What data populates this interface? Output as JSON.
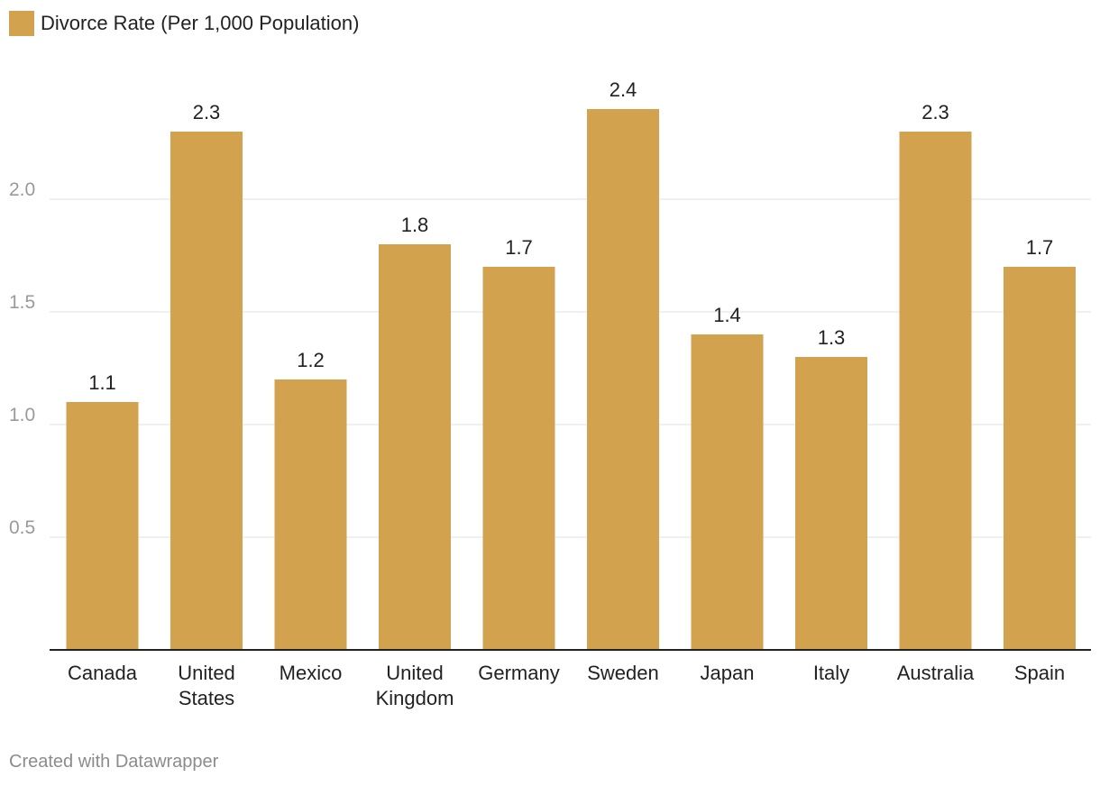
{
  "chart_data": {
    "type": "bar",
    "categories": [
      "Canada",
      "United States",
      "Mexico",
      "United Kingdom",
      "Germany",
      "Sweden",
      "Japan",
      "Italy",
      "Australia",
      "Spain"
    ],
    "category_lines": [
      [
        "Canada"
      ],
      [
        "United",
        "States"
      ],
      [
        "Mexico"
      ],
      [
        "United",
        "Kingdom"
      ],
      [
        "Germany"
      ],
      [
        "Sweden"
      ],
      [
        "Japan"
      ],
      [
        "Italy"
      ],
      [
        "Australia"
      ],
      [
        "Spain"
      ]
    ],
    "series": [
      {
        "name": "Divorce Rate (Per 1,000 Population)",
        "values": [
          1.1,
          2.3,
          1.2,
          1.8,
          1.7,
          2.4,
          1.4,
          1.3,
          2.3,
          1.7
        ],
        "color": "#d3a24f"
      }
    ],
    "value_labels": [
      "1.1",
      "2.3",
      "1.2",
      "1.8",
      "1.7",
      "2.4",
      "1.4",
      "1.3",
      "2.3",
      "1.7"
    ],
    "yticks": [
      0.5,
      1.0,
      1.5,
      2.0
    ],
    "ytick_labels": [
      "0.5",
      "1.0",
      "1.5",
      "2.0"
    ],
    "ylim": [
      0,
      2.4
    ],
    "grid": true,
    "legend": "top-left",
    "title": "",
    "xlabel": "",
    "ylabel": ""
  },
  "legend": {
    "label": "Divorce Rate (Per 1,000 Population)",
    "color": "#d3a24f"
  },
  "footer": {
    "credit": "Created with Datawrapper"
  },
  "colors": {
    "bar": "#d3a24f",
    "gridline": "#e1e1e1",
    "axis": "#222222",
    "tick_text": "#9a9a9a",
    "credit_text": "#8c8c8c"
  }
}
